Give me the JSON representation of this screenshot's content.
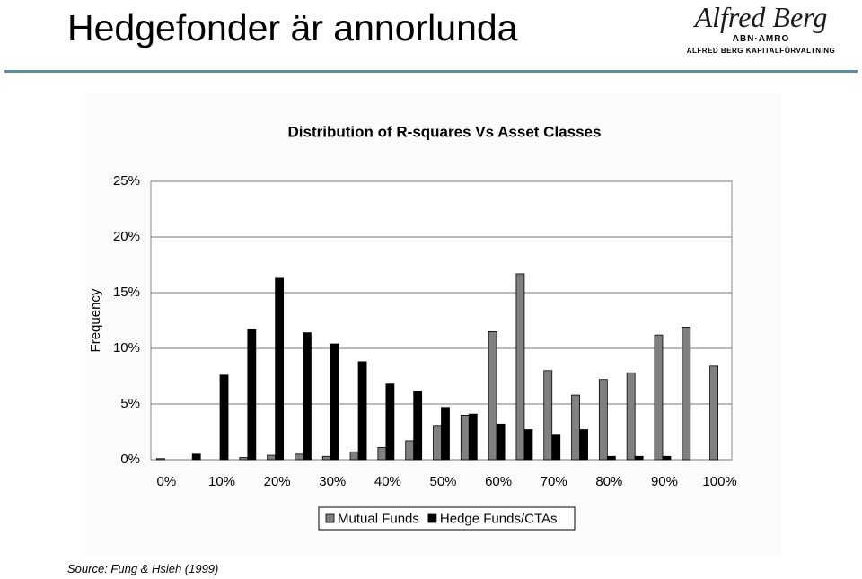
{
  "header": {
    "title": "Hedgefonder är annorlunda"
  },
  "logo": {
    "name": "Alfred Berg",
    "bank": "ABN·AMRO",
    "company": "ALFRED BERG KAPITALFÖRVALTNING"
  },
  "source": "Source: Fung & Hsieh (1999)",
  "chart_data": {
    "type": "bar",
    "title": "Distribution of R-squares Vs Asset Classes",
    "y_label": "Frequency",
    "categories": [
      "0%",
      null,
      "10%",
      null,
      "20%",
      null,
      "30%",
      null,
      "40%",
      null,
      "50%",
      null,
      "60%",
      null,
      "70%",
      null,
      "80%",
      null,
      "90%",
      null,
      "100%"
    ],
    "series": [
      {
        "name": "Mutual Funds",
        "color": "#808080",
        "values": [
          0.1,
          0,
          0,
          0.2,
          0.4,
          0.5,
          0.3,
          0.7,
          1.1,
          1.7,
          3.0,
          4.0,
          11.5,
          16.7,
          8.0,
          5.8,
          7.2,
          7.8,
          11.2,
          11.9,
          8.4
        ]
      },
      {
        "name": "Hedge Funds/CTAs",
        "color": "#000000",
        "values": [
          0,
          0.5,
          7.6,
          11.7,
          16.3,
          11.4,
          10.4,
          8.8,
          6.8,
          6.1,
          4.7,
          4.1,
          3.2,
          2.7,
          2.2,
          2.7,
          0.3,
          0.3,
          0.3,
          0,
          0
        ]
      }
    ],
    "ylim": [
      0,
      25
    ],
    "yticks": [
      {
        "value": 0,
        "label": "0%"
      },
      {
        "value": 5,
        "label": "5%"
      },
      {
        "value": 10,
        "label": "10%"
      },
      {
        "value": 15,
        "label": "15%"
      },
      {
        "value": 20,
        "label": "20%"
      },
      {
        "value": 25,
        "label": "25%"
      }
    ],
    "grid": true,
    "legend": "bottom"
  }
}
